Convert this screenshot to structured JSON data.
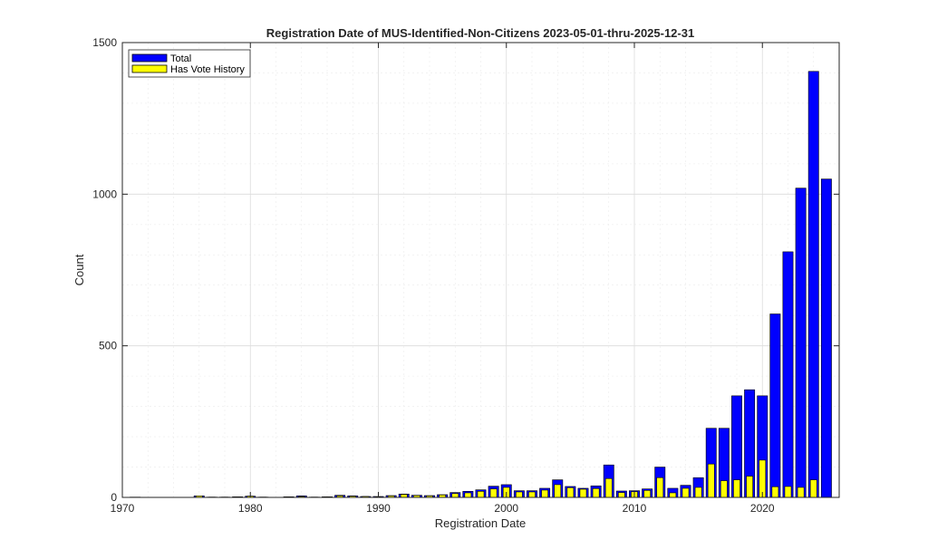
{
  "chart_data": {
    "type": "bar",
    "title": "Registration Date of MUS-Identified-Non-Citizens 2023-05-01-thru-2025-12-31",
    "xlabel": "Registration Date",
    "ylabel": "Count",
    "xlim": [
      1970,
      2026
    ],
    "ylim": [
      0,
      1500
    ],
    "xticks": [
      "1970",
      "1980",
      "1990",
      "2000",
      "2010",
      "2020"
    ],
    "yticks": [
      "0",
      "500",
      "1000",
      "1500"
    ],
    "grid": true,
    "legend_position": "top-left",
    "colors": {
      "total": "#0000ff",
      "vote": "#ffff00",
      "edge": "#000000"
    },
    "x": [
      1971,
      1972,
      1973,
      1974,
      1975,
      1976,
      1977,
      1978,
      1979,
      1980,
      1981,
      1982,
      1983,
      1984,
      1985,
      1986,
      1987,
      1988,
      1989,
      1990,
      1991,
      1992,
      1993,
      1994,
      1995,
      1996,
      1997,
      1998,
      1999,
      2000,
      2001,
      2002,
      2003,
      2004,
      2005,
      2006,
      2007,
      2008,
      2009,
      2010,
      2011,
      2012,
      2013,
      2014,
      2015,
      2016,
      2017,
      2018,
      2019,
      2020,
      2021,
      2022,
      2023,
      2024,
      2025
    ],
    "series": [
      {
        "name": "Total",
        "values": [
          1,
          0,
          0,
          0,
          0,
          5,
          1,
          1,
          2,
          4,
          1,
          0,
          2,
          5,
          1,
          2,
          7,
          5,
          3,
          3,
          6,
          11,
          7,
          6,
          9,
          16,
          20,
          25,
          37,
          42,
          22,
          22,
          30,
          58,
          36,
          30,
          38,
          107,
          21,
          22,
          28,
          100,
          30,
          40,
          65,
          228,
          228,
          335,
          355,
          335,
          605,
          810,
          1020,
          1405,
          1050
        ]
      },
      {
        "name": "Has Vote History",
        "values": [
          0,
          0,
          0,
          0,
          0,
          5,
          1,
          1,
          2,
          4,
          1,
          0,
          2,
          3,
          1,
          2,
          5,
          4,
          3,
          2,
          5,
          10,
          6,
          5,
          8,
          13,
          15,
          20,
          28,
          33,
          18,
          18,
          24,
          42,
          32,
          27,
          29,
          62,
          16,
          19,
          23,
          65,
          15,
          30,
          33,
          110,
          55,
          58,
          70,
          123,
          35,
          36,
          33,
          58,
          0
        ]
      }
    ]
  }
}
